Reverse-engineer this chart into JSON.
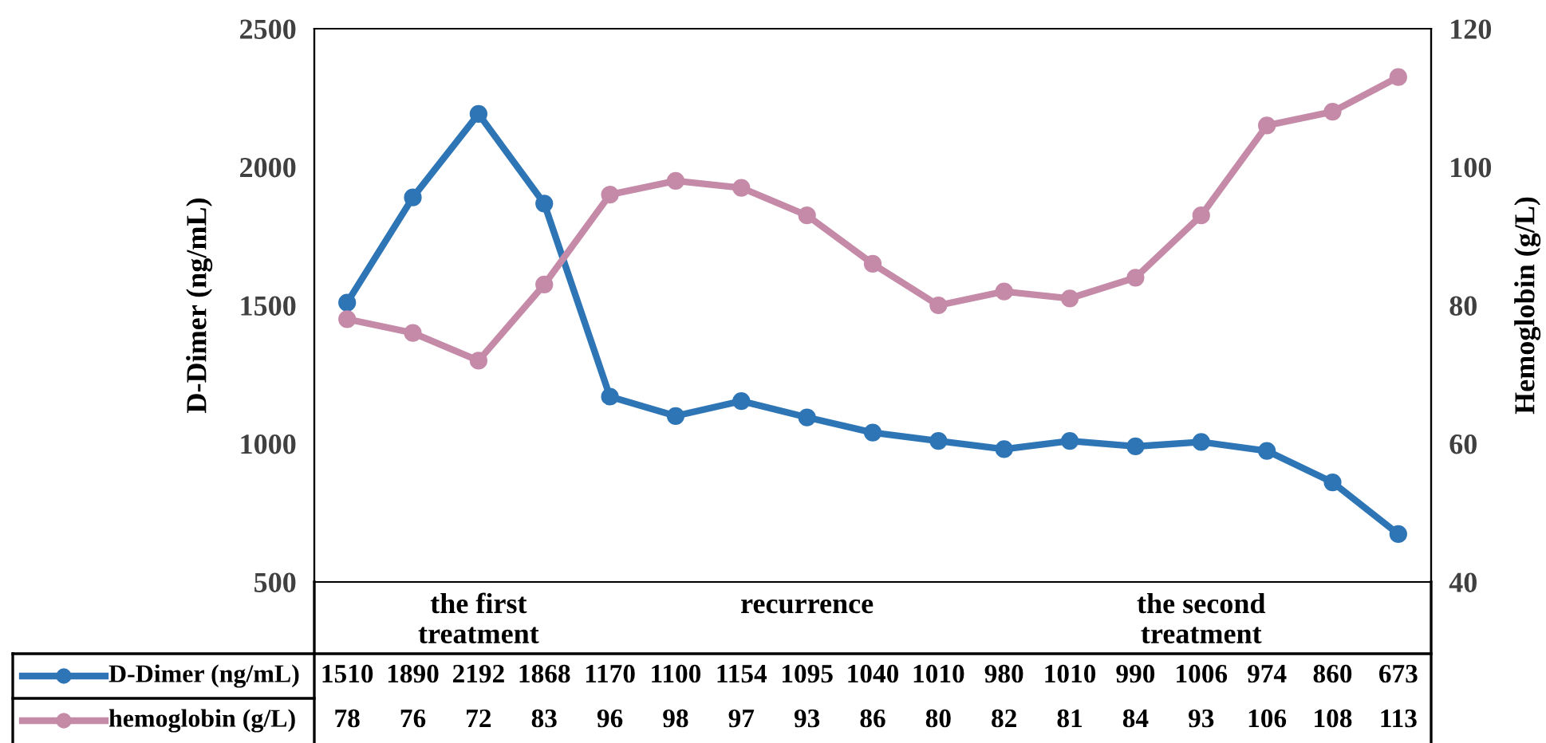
{
  "chart_data": {
    "type": "line",
    "categories": [
      null,
      null,
      "the first\ntreatment",
      null,
      null,
      null,
      null,
      "recurrence",
      null,
      null,
      null,
      null,
      null,
      "the second\ntreatment",
      null,
      null,
      null
    ],
    "series": [
      {
        "name": "D-Dimer (ng/mL)",
        "color": "#2e75b6",
        "values": [
          1510,
          1890,
          2192,
          1868,
          1170,
          1100,
          1154,
          1095,
          1040,
          1010,
          980,
          1010,
          990,
          1006,
          974,
          860,
          673
        ]
      },
      {
        "name": "hemoglobin (g/L)",
        "color": "#c48aa8",
        "axis": "y2",
        "values": [
          78,
          76,
          72,
          83,
          96,
          98,
          97,
          93,
          86,
          80,
          82,
          81,
          84,
          93,
          106,
          108,
          113
        ]
      }
    ],
    "ylabel": "D-Dimer (ng/mL)",
    "y2label": "Hemoglobin (g/L)",
    "ylim": [
      500,
      2500
    ],
    "yticks": [
      500,
      1000,
      1500,
      2000,
      2500
    ],
    "y2lim": [
      40,
      120
    ],
    "y2ticks": [
      40,
      60,
      80,
      100,
      120
    ],
    "marker": "circle",
    "line_style": "solid",
    "grid": false,
    "legend": "bottom",
    "data_labels": true
  }
}
